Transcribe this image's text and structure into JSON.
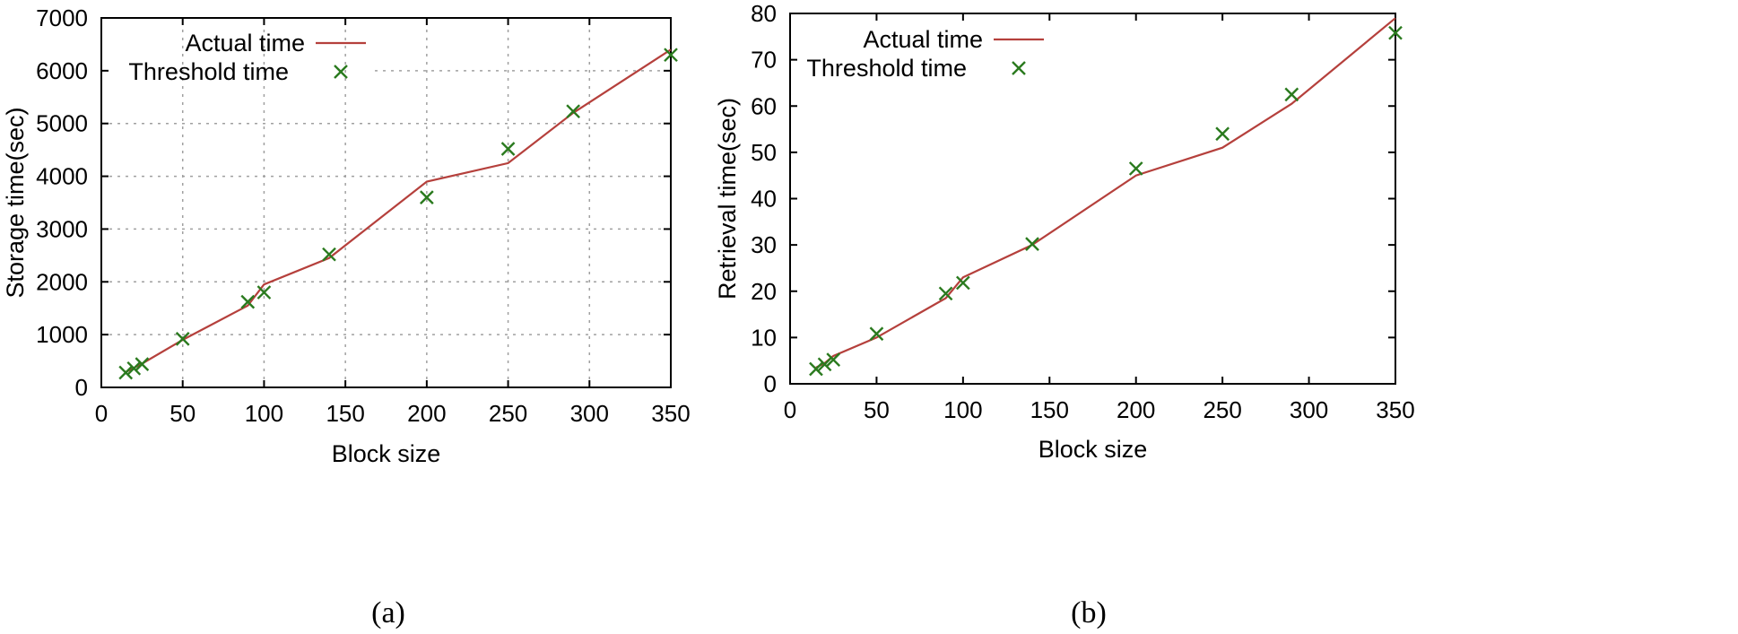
{
  "colors": {
    "actual": "#b5403c",
    "threshold": "#2a7a1e"
  },
  "chart_data": [
    {
      "type": "line",
      "caption": "(a)",
      "xlabel": "Block size",
      "ylabel": "Storage time(sec)",
      "xlim": [
        0,
        350
      ],
      "ylim": [
        0,
        7000
      ],
      "xticks": [
        0,
        50,
        100,
        150,
        200,
        250,
        300,
        350
      ],
      "yticks": [
        0,
        1000,
        2000,
        3000,
        4000,
        5000,
        6000,
        7000
      ],
      "grid": true,
      "legend_position": "top-left",
      "series": [
        {
          "name": "Actual time",
          "style": "line",
          "x": [
            15,
            20,
            25,
            50,
            90,
            100,
            140,
            200,
            250,
            290,
            350
          ],
          "y": [
            290,
            370,
            450,
            900,
            1550,
            1950,
            2450,
            3900,
            4250,
            5200,
            6400
          ]
        },
        {
          "name": "Threshold time",
          "style": "x-marker",
          "x": [
            15,
            20,
            25,
            50,
            90,
            100,
            140,
            200,
            250,
            290,
            350
          ],
          "y": [
            280,
            360,
            440,
            920,
            1620,
            1800,
            2520,
            3600,
            4520,
            5230,
            6300
          ]
        }
      ]
    },
    {
      "type": "line",
      "caption": "(b)",
      "xlabel": "Block size",
      "ylabel": "Retrieval time(sec)",
      "xlim": [
        0,
        350
      ],
      "ylim": [
        0,
        80
      ],
      "xticks": [
        0,
        50,
        100,
        150,
        200,
        250,
        300,
        350
      ],
      "yticks": [
        0,
        10,
        20,
        30,
        40,
        50,
        60,
        70,
        80
      ],
      "grid": false,
      "legend_position": "top-left",
      "series": [
        {
          "name": "Actual time",
          "style": "line",
          "x": [
            15,
            20,
            25,
            50,
            90,
            100,
            140,
            200,
            250,
            290,
            350
          ],
          "y": [
            3.5,
            4.5,
            6,
            10,
            18.5,
            23,
            30,
            45,
            51,
            60.5,
            79
          ]
        },
        {
          "name": "Threshold time",
          "style": "x-marker",
          "x": [
            15,
            20,
            25,
            50,
            90,
            100,
            140,
            200,
            250,
            290,
            350
          ],
          "y": [
            3.2,
            4.2,
            5.2,
            10.8,
            19.5,
            21.8,
            30.2,
            46.5,
            54,
            62.5,
            75.8
          ]
        }
      ]
    }
  ]
}
